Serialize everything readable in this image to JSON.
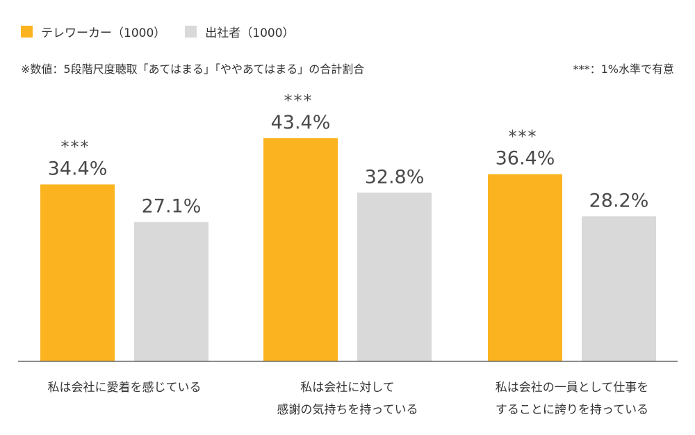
{
  "legend": {
    "items": [
      {
        "label": "テレワーカー（1000）",
        "color": "#FBB41F"
      },
      {
        "label": "出社者（1000）",
        "color": "#D9D9D9"
      }
    ]
  },
  "notes": {
    "left": "※数値：5段階尺度聴取「あてはまる」「ややあてはまる」の合計割合",
    "right": "***：1%水準で有意"
  },
  "chart_data": {
    "type": "bar",
    "categories": [
      [
        "私は会社に愛着を感じている"
      ],
      [
        "私は会社に対して",
        "感謝の気持ちを持っている"
      ],
      [
        "私は会社の一員として仕事を",
        "することに誇りを持っている"
      ]
    ],
    "series": [
      {
        "name": "テレワーカー（1000）",
        "values": [
          34.4,
          43.4,
          36.4
        ],
        "color": "#FBB41F"
      },
      {
        "name": "出社者（1000）",
        "values": [
          27.1,
          32.8,
          28.2
        ],
        "color": "#D9D9D9"
      }
    ],
    "value_labels": [
      [
        "34.4%",
        "43.4%",
        "36.4%"
      ],
      [
        "27.1%",
        "32.8%",
        "28.2%"
      ]
    ],
    "significance": [
      "***",
      "***",
      "***"
    ],
    "ylim": [
      0,
      50
    ],
    "grid": false,
    "legend_position": "top-left"
  }
}
